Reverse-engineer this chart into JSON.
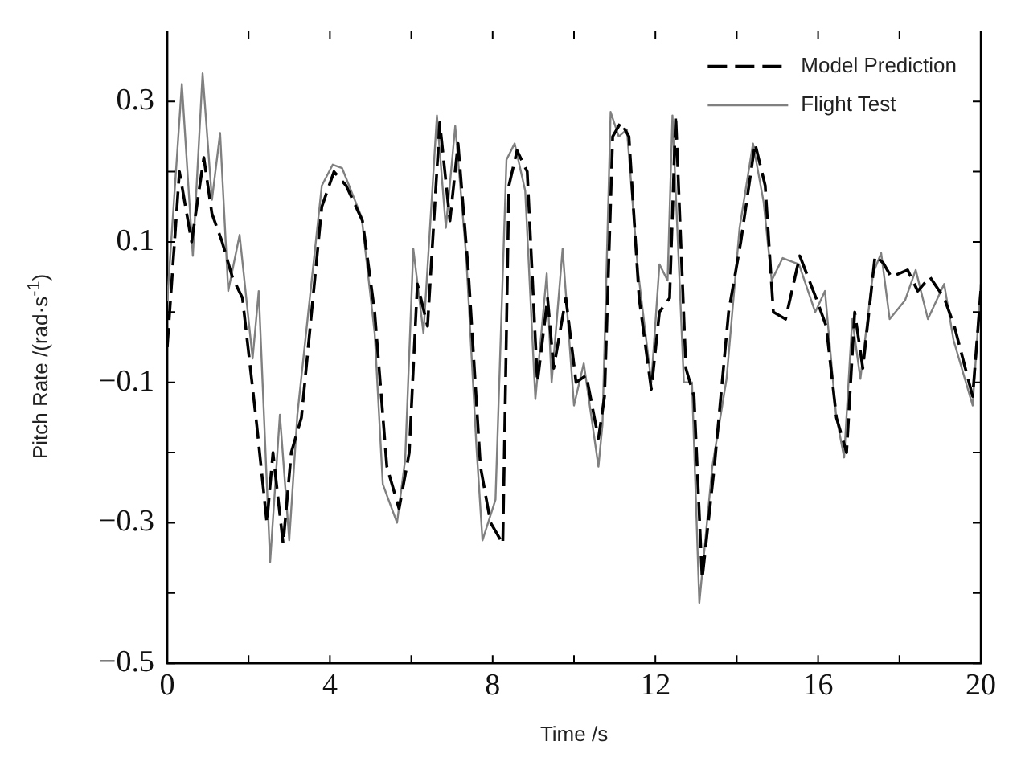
{
  "chart_data": {
    "type": "line",
    "xlabel": "Time /s",
    "ylabel": "Pitch Rate /(rad·s$^{-1}$)",
    "xlim": [
      0,
      20
    ],
    "xticks": [
      0,
      {
        "value": 2,
        "label": null
      },
      4,
      {
        "value": 6,
        "label": null
      },
      8,
      {
        "value": 10,
        "label": null
      },
      12,
      {
        "value": 14,
        "label": null
      },
      16,
      {
        "value": 18,
        "label": null
      },
      20
    ],
    "ylim": [
      -0.5,
      0.4
    ],
    "yticks": [
      -0.5,
      {
        "value": -0.4,
        "label": null
      },
      -0.3,
      {
        "value": -0.2,
        "label": null
      },
      -0.1,
      {
        "value": 0,
        "label": null
      },
      0.1,
      {
        "value": 0.2,
        "label": null
      },
      0.3
    ],
    "grid": false,
    "legend": "top right",
    "marker": "none",
    "series": [
      {
        "name": "Model Prediction",
        "color": "#000000",
        "line_style": "dashed",
        "x": [
          0,
          0.3,
          0.6,
          0.9,
          1.1,
          1.35,
          1.6,
          1.85,
          2.2,
          2.45,
          2.6,
          2.85,
          3.05,
          3.3,
          3.8,
          4.1,
          4.4,
          4.8,
          5.1,
          5.4,
          5.7,
          5.95,
          6.15,
          6.4,
          6.7,
          6.95,
          7.15,
          7.4,
          7.7,
          7.95,
          8.25,
          8.4,
          8.6,
          8.85,
          9.1,
          9.35,
          9.5,
          9.8,
          10.05,
          10.3,
          10.6,
          10.75,
          10.95,
          11.15,
          11.35,
          11.6,
          11.9,
          12.1,
          12.35,
          12.5,
          12.75,
          12.95,
          13.15,
          13.45,
          13.8,
          14.1,
          14.45,
          14.7,
          14.9,
          15.2,
          15.55,
          15.95,
          16.2,
          16.45,
          16.7,
          16.9,
          17.1,
          17.4,
          17.6,
          17.8,
          18.2,
          18.45,
          18.75,
          19.1,
          19.35,
          19.8,
          20
        ],
        "values": [
          -0.05,
          0.2,
          0.1,
          0.22,
          0.14,
          0.1,
          0.05,
          0.02,
          -0.16,
          -0.3,
          -0.2,
          -0.33,
          -0.2,
          -0.15,
          0.15,
          0.2,
          0.18,
          0.13,
          0.0,
          -0.22,
          -0.28,
          -0.2,
          0.04,
          -0.02,
          0.27,
          0.13,
          0.24,
          0.06,
          -0.22,
          -0.3,
          -0.33,
          0.18,
          0.23,
          0.2,
          -0.1,
          0.02,
          -0.08,
          0.02,
          -0.1,
          -0.09,
          -0.18,
          -0.12,
          0.25,
          0.27,
          0.25,
          0.02,
          -0.11,
          0.0,
          0.02,
          0.28,
          -0.08,
          -0.12,
          -0.38,
          -0.22,
          0.0,
          0.1,
          0.24,
          0.18,
          0.0,
          -0.01,
          0.08,
          0.02,
          -0.02,
          -0.15,
          -0.2,
          0.0,
          -0.08,
          0.08,
          0.07,
          0.05,
          0.06,
          0.03,
          0.05,
          0.02,
          -0.02,
          -0.12,
          0.03
        ]
      },
      {
        "name": "Flight Test",
        "color": "#808080",
        "x": [
          0,
          0.36,
          0.63,
          0.87,
          1.1,
          1.3,
          1.5,
          1.78,
          2.1,
          2.25,
          2.53,
          2.77,
          3.0,
          3.2,
          3.8,
          4.07,
          4.3,
          4.78,
          5.1,
          5.3,
          5.65,
          5.85,
          6.05,
          6.3,
          6.63,
          6.85,
          7.08,
          7.35,
          7.6,
          7.75,
          8.07,
          8.34,
          8.54,
          8.8,
          9.05,
          9.33,
          9.45,
          9.72,
          10.0,
          10.24,
          10.6,
          10.7,
          10.9,
          11.1,
          11.3,
          11.57,
          11.9,
          12.1,
          12.3,
          12.42,
          12.7,
          12.9,
          13.08,
          13.4,
          13.75,
          14.07,
          14.4,
          14.66,
          14.86,
          15.13,
          15.53,
          15.93,
          16.17,
          16.44,
          16.64,
          16.84,
          17.04,
          17.35,
          17.55,
          17.76,
          18.14,
          18.4,
          18.7,
          19.1,
          19.33,
          19.8,
          20
        ],
        "values": [
          0.016,
          0.325,
          0.08,
          0.34,
          0.16,
          0.255,
          0.03,
          0.11,
          -0.066,
          0.03,
          -0.356,
          -0.146,
          -0.325,
          -0.146,
          0.18,
          0.21,
          0.205,
          0.135,
          -0.03,
          -0.245,
          -0.3,
          -0.21,
          0.09,
          -0.03,
          0.28,
          0.12,
          0.265,
          0.08,
          -0.19,
          -0.325,
          -0.267,
          0.217,
          0.24,
          0.173,
          -0.124,
          0.055,
          -0.1,
          0.09,
          -0.133,
          -0.073,
          -0.22,
          -0.16,
          0.285,
          0.25,
          0.26,
          0.06,
          -0.1,
          0.068,
          0.045,
          0.28,
          -0.1,
          -0.1,
          -0.414,
          -0.22,
          -0.095,
          0.12,
          0.24,
          0.157,
          0.045,
          0.077,
          0.068,
          0.0,
          0.03,
          -0.146,
          -0.207,
          -0.01,
          -0.095,
          0.055,
          0.084,
          -0.01,
          0.017,
          0.06,
          -0.01,
          0.04,
          -0.04,
          -0.133,
          0.04
        ]
      }
    ]
  }
}
